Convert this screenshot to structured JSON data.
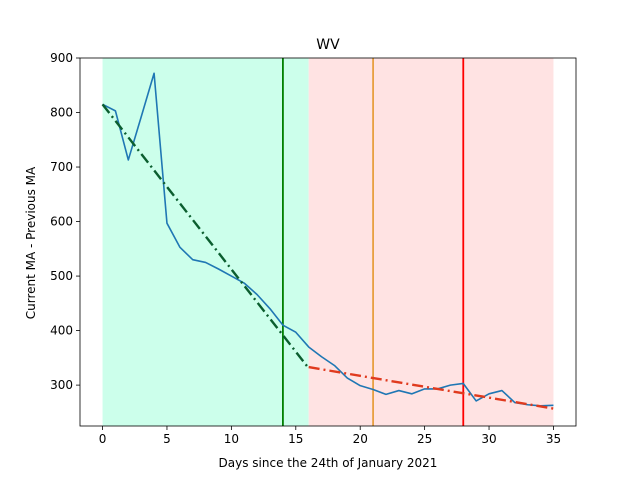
{
  "chart_data": {
    "type": "line",
    "title": "WV",
    "xlabel": "Days since the 24th of January 2021",
    "ylabel": "Current MA - Previous MA",
    "xlim": [
      -1.75,
      36.75
    ],
    "ylim": [
      225,
      900
    ],
    "xticks": [
      0,
      5,
      10,
      15,
      20,
      25,
      30,
      35
    ],
    "yticks": [
      300,
      400,
      500,
      600,
      700,
      800,
      900
    ],
    "grid": false,
    "legend": "none",
    "shaded_regions": [
      {
        "x0": 0,
        "x1": 16,
        "color": "#ccffeb"
      },
      {
        "x0": 16,
        "x1": 35,
        "color": "#ffe3e3"
      }
    ],
    "vertical_lines": [
      {
        "x": 14,
        "color": "#008000"
      },
      {
        "x": 21,
        "color": "#e8a040"
      },
      {
        "x": 28,
        "color": "#ff0000"
      }
    ],
    "series": [
      {
        "color": "#1f77b4",
        "style": "solid",
        "x": [
          0,
          1,
          2,
          3,
          4,
          5,
          6,
          7,
          8,
          9,
          10,
          11,
          12,
          13,
          14,
          15,
          16,
          17,
          18,
          19,
          20,
          21,
          22,
          23,
          24,
          25,
          26,
          27,
          28,
          29,
          30,
          31,
          32,
          33,
          34,
          35
        ],
        "y": [
          815,
          803,
          713,
          792,
          872,
          597,
          553,
          530,
          525,
          513,
          500,
          487,
          466,
          440,
          410,
          397,
          370,
          352,
          336,
          313,
          299,
          292,
          283,
          290,
          284,
          293,
          293,
          300,
          303,
          271,
          284,
          290,
          268,
          264,
          262,
          263
        ]
      }
    ],
    "trend_lines": [
      {
        "color": "#0b5e2f",
        "style": "dashdot",
        "x": [
          0,
          16
        ],
        "y": [
          815,
          331
        ]
      },
      {
        "color": "#e03a1e",
        "style": "dashdot",
        "x": [
          16,
          35
        ],
        "y": [
          333,
          257
        ]
      }
    ],
    "colors": {
      "axis": "#000000",
      "background": "#ffffff"
    }
  }
}
